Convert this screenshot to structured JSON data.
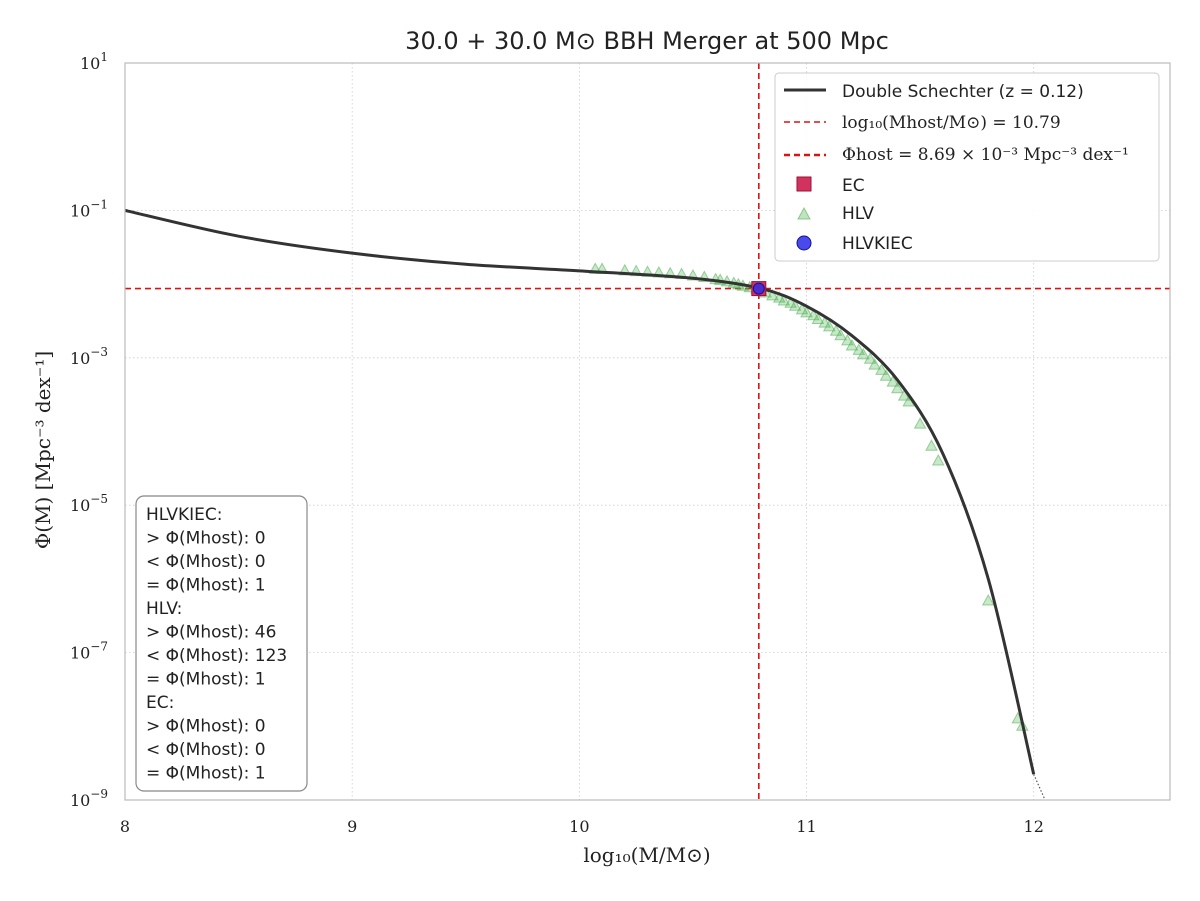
{
  "chart_data": {
    "type": "line",
    "title": "30.0 + 30.0 M⊙ BBH Merger at 500 Mpc",
    "xlabel": "log₁₀(M/M⊙)",
    "ylabel": "Φ(M) [Mpc⁻³ dex⁻¹]",
    "xlim": [
      8,
      12.6
    ],
    "ylim_log10": [
      -9,
      1
    ],
    "yscale": "log",
    "grid": true,
    "legend_position": "upper-right",
    "x_ticks": [
      "8",
      "9",
      "10",
      "11",
      "12"
    ],
    "x_tick_values": [
      8,
      9,
      10,
      11,
      12
    ],
    "y_ticks": [
      {
        "value": 1,
        "base": "10",
        "exp": "1"
      },
      {
        "value": -1,
        "base": "10",
        "exp": "−1"
      },
      {
        "value": -3,
        "base": "10",
        "exp": "−3"
      },
      {
        "value": -5,
        "base": "10",
        "exp": "−5"
      },
      {
        "value": -7,
        "base": "10",
        "exp": "−7"
      },
      {
        "value": -9,
        "base": "10",
        "exp": "−9"
      }
    ],
    "host": {
      "log_mass": 10.79,
      "log_phi": -2.061
    },
    "curve": {
      "name": "Double Schechter (z = 0.12)",
      "x": [
        8.0,
        8.5,
        9.0,
        9.5,
        10.0,
        10.5,
        10.8,
        11.0,
        11.2,
        11.4,
        11.6,
        11.8,
        12.0
      ],
      "log_phi": [
        -1.0,
        -1.35,
        -1.58,
        -1.73,
        -1.82,
        -1.92,
        -2.06,
        -2.3,
        -2.7,
        -3.3,
        -4.3,
        -6.0,
        -8.65
      ]
    },
    "curve_tail": {
      "x": [
        12.0,
        12.05
      ],
      "log_phi": [
        -8.65,
        -9.0
      ]
    },
    "series": [
      {
        "name": "HLV",
        "marker": "triangle",
        "color": "#4caf50",
        "x": [
          10.07,
          10.1,
          10.2,
          10.25,
          10.3,
          10.35,
          10.4,
          10.45,
          10.5,
          10.55,
          10.6,
          10.62,
          10.65,
          10.68,
          10.7,
          10.72,
          10.75,
          10.78,
          10.8,
          10.82,
          10.85,
          10.88,
          10.9,
          10.93,
          10.95,
          10.98,
          11.0,
          11.03,
          11.05,
          11.08,
          11.1,
          11.13,
          11.15,
          11.18,
          11.2,
          11.23,
          11.25,
          11.28,
          11.3,
          11.33,
          11.35,
          11.38,
          11.4,
          11.43,
          11.45,
          11.5,
          11.55,
          11.58,
          11.8,
          11.93,
          11.95
        ],
        "log_phi": [
          -1.8,
          -1.8,
          -1.82,
          -1.83,
          -1.84,
          -1.85,
          -1.86,
          -1.87,
          -1.89,
          -1.91,
          -1.94,
          -1.95,
          -1.97,
          -1.99,
          -2.01,
          -2.03,
          -2.05,
          -2.07,
          -2.1,
          -2.12,
          -2.16,
          -2.19,
          -2.23,
          -2.26,
          -2.3,
          -2.35,
          -2.39,
          -2.43,
          -2.48,
          -2.53,
          -2.58,
          -2.64,
          -2.7,
          -2.77,
          -2.84,
          -2.9,
          -2.96,
          -3.02,
          -3.1,
          -3.17,
          -3.25,
          -3.33,
          -3.42,
          -3.52,
          -3.6,
          -3.9,
          -4.2,
          -4.4,
          -6.3,
          -7.9,
          -8.0
        ]
      },
      {
        "name": "EC",
        "marker": "square",
        "color": "#d1325e",
        "x": [
          10.79
        ],
        "log_phi": [
          -2.061
        ]
      },
      {
        "name": "HLVKIEC",
        "marker": "circle",
        "color": "#2a2ae6",
        "x": [
          10.79
        ],
        "log_phi": [
          -2.061
        ]
      }
    ],
    "legend": {
      "curve": "Double Schechter (z = 0.12)",
      "host_mass": "log₁₀(Mhost/M⊙) = 10.79",
      "host_phi": "Φhost = 8.69 × 10⁻³ Mpc⁻³ dex⁻¹",
      "ec": "EC",
      "hlv": "HLV",
      "hlvkiec": "HLVKIEC"
    },
    "stats_box": [
      "HLVKIEC:",
      "> Φ(Mhost): 0",
      "< Φ(Mhost): 0",
      "= Φ(Mhost): 1",
      "HLV:",
      "> Φ(Mhost): 46",
      "< Φ(Mhost): 123",
      "= Φ(Mhost): 1",
      "EC:",
      "> Φ(Mhost): 0",
      "< Φ(Mhost): 0",
      "= Φ(Mhost): 1"
    ],
    "colors": {
      "curve": "#333333",
      "host_lines": "#dd1111",
      "grid": "#cccccc",
      "frame": "#bbbbbb"
    }
  }
}
